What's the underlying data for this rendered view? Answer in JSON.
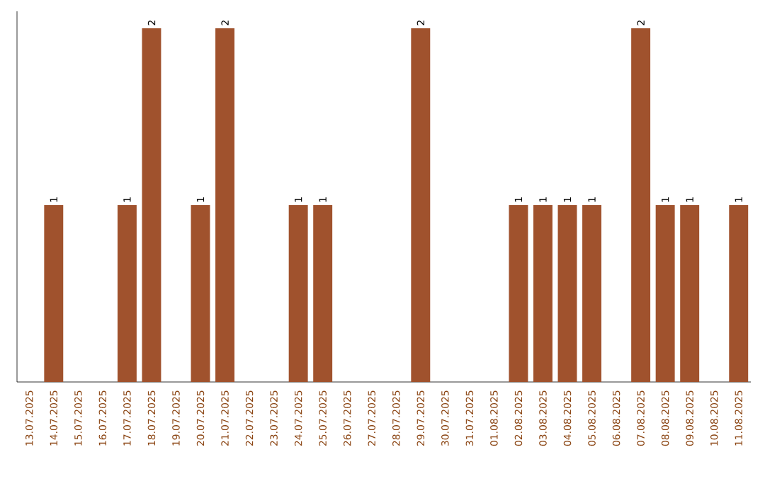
{
  "chart_data": {
    "type": "bar",
    "color": "#a0522d",
    "tick_labels": "x",
    "categories": [
      "13.07.2025",
      "14.07.2025",
      "15.07.2025",
      "16.07.2025",
      "17.07.2025",
      "18.07.2025",
      "19.07.2025",
      "20.07.2025",
      "21.07.2025",
      "22.07.2025",
      "23.07.2025",
      "24.07.2025",
      "25.07.2025",
      "26.07.2025",
      "27.07.2025",
      "28.07.2025",
      "29.07.2025",
      "30.07.2025",
      "31.07.2025",
      "01.08.2025",
      "02.08.2025",
      "03.08.2025",
      "04.08.2025",
      "05.08.2025",
      "06.08.2025",
      "07.08.2025",
      "08.08.2025",
      "09.08.2025",
      "10.08.2025",
      "11.08.2025"
    ],
    "values": [
      0,
      1,
      0,
      0,
      1,
      2,
      0,
      1,
      2,
      0,
      0,
      1,
      1,
      0,
      0,
      0,
      2,
      0,
      0,
      0,
      1,
      1,
      1,
      1,
      0,
      2,
      1,
      1,
      0,
      1
    ],
    "value_labels": [
      null,
      "1",
      null,
      null,
      "1",
      "2",
      null,
      "1",
      "2",
      null,
      null,
      "1",
      "1",
      null,
      null,
      null,
      "2",
      null,
      null,
      null,
      "1",
      "1",
      "1",
      "1",
      null,
      "2",
      "1",
      "1",
      null,
      "1"
    ]
  }
}
